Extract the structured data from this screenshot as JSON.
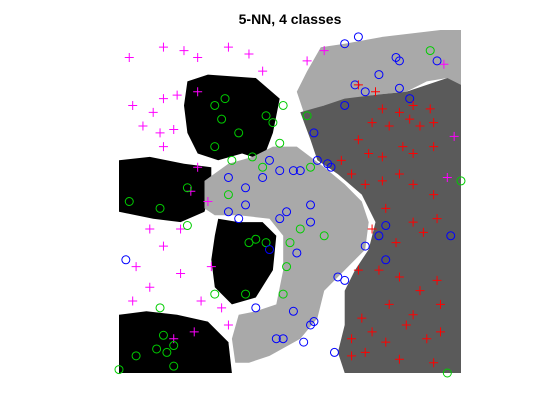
{
  "chart_data": {
    "type": "scatter",
    "title": "5-NN, 4 classes",
    "xlabel": "",
    "ylabel": "",
    "xlim": [
      0,
      1
    ],
    "ylim": [
      0,
      1
    ],
    "grid": false,
    "axes_visible": false,
    "background": "decision-regions",
    "region_colors": [
      "#ffffff",
      "#000000",
      "#a9a9a9",
      "#5a5a5a"
    ],
    "regions": [
      {
        "class": 1,
        "polys": [
          [
            [
              0.2,
              0.85
            ],
            [
              0.26,
              0.87
            ],
            [
              0.4,
              0.86
            ],
            [
              0.47,
              0.8
            ],
            [
              0.45,
              0.7
            ],
            [
              0.42,
              0.62
            ],
            [
              0.36,
              0.64
            ],
            [
              0.29,
              0.62
            ],
            [
              0.23,
              0.64
            ],
            [
              0.2,
              0.7
            ],
            [
              0.19,
              0.78
            ]
          ],
          [
            [
              0.0,
              0.62
            ],
            [
              0.09,
              0.63
            ],
            [
              0.19,
              0.61
            ],
            [
              0.27,
              0.6
            ],
            [
              0.27,
              0.54
            ],
            [
              0.25,
              0.47
            ],
            [
              0.18,
              0.44
            ],
            [
              0.1,
              0.45
            ],
            [
              0.05,
              0.46
            ],
            [
              0.0,
              0.47
            ]
          ],
          [
            [
              0.29,
              0.45
            ],
            [
              0.35,
              0.44
            ],
            [
              0.42,
              0.44
            ],
            [
              0.46,
              0.4
            ],
            [
              0.45,
              0.3
            ],
            [
              0.4,
              0.22
            ],
            [
              0.33,
              0.2
            ],
            [
              0.28,
              0.25
            ],
            [
              0.27,
              0.33
            ],
            [
              0.28,
              0.4
            ]
          ],
          [
            [
              0.0,
              0.17
            ],
            [
              0.08,
              0.18
            ],
            [
              0.17,
              0.17
            ],
            [
              0.26,
              0.15
            ],
            [
              0.32,
              0.09
            ],
            [
              0.33,
              0.0
            ],
            [
              0.0,
              0.0
            ]
          ]
        ]
      },
      {
        "class": 2,
        "polys": [
          [
            [
              0.59,
              0.95
            ],
            [
              0.66,
              0.96
            ],
            [
              0.77,
              0.98
            ],
            [
              0.94,
              1.0
            ],
            [
              1.0,
              1.0
            ],
            [
              1.0,
              0.83
            ],
            [
              0.96,
              0.86
            ],
            [
              0.9,
              0.85
            ],
            [
              0.84,
              0.82
            ],
            [
              0.74,
              0.81
            ],
            [
              0.66,
              0.78
            ],
            [
              0.6,
              0.78
            ],
            [
              0.54,
              0.76
            ],
            [
              0.52,
              0.82
            ],
            [
              0.55,
              0.88
            ]
          ],
          [
            [
              0.25,
              0.56
            ],
            [
              0.32,
              0.61
            ],
            [
              0.39,
              0.63
            ],
            [
              0.45,
              0.66
            ],
            [
              0.52,
              0.66
            ],
            [
              0.6,
              0.6
            ],
            [
              0.66,
              0.55
            ],
            [
              0.71,
              0.5
            ],
            [
              0.73,
              0.44
            ],
            [
              0.72,
              0.36
            ],
            [
              0.66,
              0.3
            ],
            [
              0.6,
              0.24
            ],
            [
              0.58,
              0.16
            ],
            [
              0.53,
              0.1
            ],
            [
              0.44,
              0.05
            ],
            [
              0.38,
              0.03
            ],
            [
              0.34,
              0.03
            ],
            [
              0.33,
              0.1
            ],
            [
              0.35,
              0.17
            ],
            [
              0.4,
              0.18
            ],
            [
              0.46,
              0.2
            ],
            [
              0.48,
              0.3
            ],
            [
              0.48,
              0.4
            ],
            [
              0.44,
              0.45
            ],
            [
              0.35,
              0.46
            ],
            [
              0.28,
              0.46
            ],
            [
              0.25,
              0.48
            ]
          ]
        ]
      },
      {
        "class": 3,
        "polys": [
          [
            [
              0.53,
              0.76
            ],
            [
              0.6,
              0.78
            ],
            [
              0.66,
              0.8
            ],
            [
              0.74,
              0.81
            ],
            [
              0.84,
              0.82
            ],
            [
              0.9,
              0.84
            ],
            [
              0.96,
              0.86
            ],
            [
              1.0,
              0.84
            ],
            [
              1.0,
              0.0
            ],
            [
              0.66,
              0.0
            ],
            [
              0.64,
              0.06
            ],
            [
              0.66,
              0.14
            ],
            [
              0.66,
              0.24
            ],
            [
              0.69,
              0.3
            ],
            [
              0.73,
              0.36
            ],
            [
              0.75,
              0.44
            ],
            [
              0.71,
              0.52
            ],
            [
              0.64,
              0.58
            ],
            [
              0.58,
              0.62
            ],
            [
              0.56,
              0.68
            ]
          ]
        ]
      }
    ],
    "series": [
      {
        "marker": "+",
        "color": "#ff00ff",
        "points": [
          [
            0.03,
            0.92
          ],
          [
            0.13,
            0.95
          ],
          [
            0.19,
            0.94
          ],
          [
            0.23,
            0.92
          ],
          [
            0.32,
            0.95
          ],
          [
            0.38,
            0.93
          ],
          [
            0.42,
            0.88
          ],
          [
            0.55,
            0.91
          ],
          [
            0.6,
            0.94
          ],
          [
            0.04,
            0.78
          ],
          [
            0.07,
            0.72
          ],
          [
            0.1,
            0.76
          ],
          [
            0.13,
            0.66
          ],
          [
            0.12,
            0.7
          ],
          [
            0.16,
            0.71
          ],
          [
            0.13,
            0.8
          ],
          [
            0.17,
            0.81
          ],
          [
            0.23,
            0.82
          ],
          [
            0.23,
            0.6
          ],
          [
            0.21,
            0.53
          ],
          [
            0.26,
            0.5
          ],
          [
            0.09,
            0.42
          ],
          [
            0.18,
            0.42
          ],
          [
            0.13,
            0.37
          ],
          [
            0.05,
            0.31
          ],
          [
            0.09,
            0.25
          ],
          [
            0.18,
            0.29
          ],
          [
            0.27,
            0.31
          ],
          [
            0.24,
            0.21
          ],
          [
            0.04,
            0.21
          ],
          [
            0.16,
            0.1
          ],
          [
            0.22,
            0.12
          ],
          [
            0.32,
            0.14
          ],
          [
            0.3,
            0.19
          ],
          [
            0.95,
            0.9
          ],
          [
            0.98,
            0.69
          ],
          [
            0.96,
            0.57
          ]
        ]
      },
      {
        "marker": "o",
        "color": "#00cc00",
        "points": [
          [
            0.28,
            0.78
          ],
          [
            0.31,
            0.8
          ],
          [
            0.3,
            0.74
          ],
          [
            0.35,
            0.7
          ],
          [
            0.33,
            0.62
          ],
          [
            0.43,
            0.75
          ],
          [
            0.45,
            0.73
          ],
          [
            0.48,
            0.78
          ],
          [
            0.55,
            0.75
          ],
          [
            0.47,
            0.67
          ],
          [
            0.28,
            0.66
          ],
          [
            0.39,
            0.63
          ],
          [
            0.42,
            0.6
          ],
          [
            0.56,
            0.6
          ],
          [
            0.2,
            0.54
          ],
          [
            0.03,
            0.5
          ],
          [
            0.12,
            0.48
          ],
          [
            0.2,
            0.43
          ],
          [
            0.32,
            0.52
          ],
          [
            0.38,
            0.38
          ],
          [
            0.4,
            0.39
          ],
          [
            0.43,
            0.38
          ],
          [
            0.5,
            0.38
          ],
          [
            0.53,
            0.42
          ],
          [
            0.6,
            0.4
          ],
          [
            0.49,
            0.31
          ],
          [
            0.37,
            0.23
          ],
          [
            0.48,
            0.23
          ],
          [
            0.28,
            0.23
          ],
          [
            0.12,
            0.19
          ],
          [
            0.05,
            0.05
          ],
          [
            0.11,
            0.07
          ],
          [
            0.14,
            0.06
          ],
          [
            0.16,
            0.08
          ],
          [
            0.13,
            0.11
          ],
          [
            0.16,
            0.02
          ],
          [
            0.0,
            0.01
          ],
          [
            0.91,
            0.94
          ],
          [
            1.0,
            0.56
          ],
          [
            0.96,
            0.0
          ]
        ]
      },
      {
        "marker": "o",
        "color": "#0000ff",
        "points": [
          [
            0.66,
            0.96
          ],
          [
            0.7,
            0.98
          ],
          [
            0.81,
            0.92
          ],
          [
            0.82,
            0.91
          ],
          [
            0.93,
            0.91
          ],
          [
            0.76,
            0.87
          ],
          [
            0.82,
            0.83
          ],
          [
            0.72,
            0.82
          ],
          [
            0.69,
            0.84
          ],
          [
            0.85,
            0.8
          ],
          [
            0.66,
            0.78
          ],
          [
            0.57,
            0.7
          ],
          [
            0.58,
            0.62
          ],
          [
            0.61,
            0.61
          ],
          [
            0.51,
            0.59
          ],
          [
            0.53,
            0.59
          ],
          [
            0.47,
            0.59
          ],
          [
            0.44,
            0.62
          ],
          [
            0.42,
            0.57
          ],
          [
            0.32,
            0.57
          ],
          [
            0.37,
            0.54
          ],
          [
            0.37,
            0.49
          ],
          [
            0.32,
            0.47
          ],
          [
            0.35,
            0.45
          ],
          [
            0.47,
            0.45
          ],
          [
            0.49,
            0.47
          ],
          [
            0.56,
            0.49
          ],
          [
            0.56,
            0.44
          ],
          [
            0.62,
            0.6
          ],
          [
            0.44,
            0.36
          ],
          [
            0.52,
            0.35
          ],
          [
            0.78,
            0.43
          ],
          [
            0.76,
            0.4
          ],
          [
            0.72,
            0.37
          ],
          [
            0.78,
            0.33
          ],
          [
            0.66,
            0.27
          ],
          [
            0.64,
            0.28
          ],
          [
            0.4,
            0.19
          ],
          [
            0.51,
            0.18
          ],
          [
            0.57,
            0.15
          ],
          [
            0.56,
            0.14
          ],
          [
            0.54,
            0.09
          ],
          [
            0.46,
            0.1
          ],
          [
            0.48,
            0.1
          ],
          [
            0.63,
            0.06
          ],
          [
            0.97,
            0.4
          ],
          [
            0.02,
            0.33
          ]
        ]
      },
      {
        "marker": "+",
        "color": "#ff0000",
        "points": [
          [
            0.7,
            0.84
          ],
          [
            0.75,
            0.82
          ],
          [
            0.77,
            0.77
          ],
          [
            0.82,
            0.76
          ],
          [
            0.86,
            0.78
          ],
          [
            0.91,
            0.77
          ],
          [
            0.92,
            0.73
          ],
          [
            0.74,
            0.73
          ],
          [
            0.79,
            0.72
          ],
          [
            0.85,
            0.74
          ],
          [
            0.88,
            0.72
          ],
          [
            0.7,
            0.68
          ],
          [
            0.73,
            0.64
          ],
          [
            0.77,
            0.63
          ],
          [
            0.83,
            0.66
          ],
          [
            0.86,
            0.64
          ],
          [
            0.92,
            0.66
          ],
          [
            0.65,
            0.62
          ],
          [
            0.68,
            0.58
          ],
          [
            0.72,
            0.55
          ],
          [
            0.77,
            0.56
          ],
          [
            0.82,
            0.58
          ],
          [
            0.86,
            0.55
          ],
          [
            0.92,
            0.52
          ],
          [
            0.78,
            0.48
          ],
          [
            0.86,
            0.44
          ],
          [
            0.89,
            0.41
          ],
          [
            0.93,
            0.45
          ],
          [
            0.74,
            0.42
          ],
          [
            0.81,
            0.38
          ],
          [
            0.7,
            0.3
          ],
          [
            0.76,
            0.3
          ],
          [
            0.82,
            0.28
          ],
          [
            0.88,
            0.24
          ],
          [
            0.93,
            0.27
          ],
          [
            0.79,
            0.2
          ],
          [
            0.86,
            0.17
          ],
          [
            0.94,
            0.2
          ],
          [
            0.71,
            0.16
          ],
          [
            0.84,
            0.14
          ],
          [
            0.68,
            0.1
          ],
          [
            0.74,
            0.12
          ],
          [
            0.78,
            0.09
          ],
          [
            0.9,
            0.1
          ],
          [
            0.94,
            0.12
          ],
          [
            0.68,
            0.05
          ],
          [
            0.72,
            0.06
          ],
          [
            0.82,
            0.04
          ],
          [
            0.92,
            0.03
          ]
        ]
      }
    ]
  }
}
